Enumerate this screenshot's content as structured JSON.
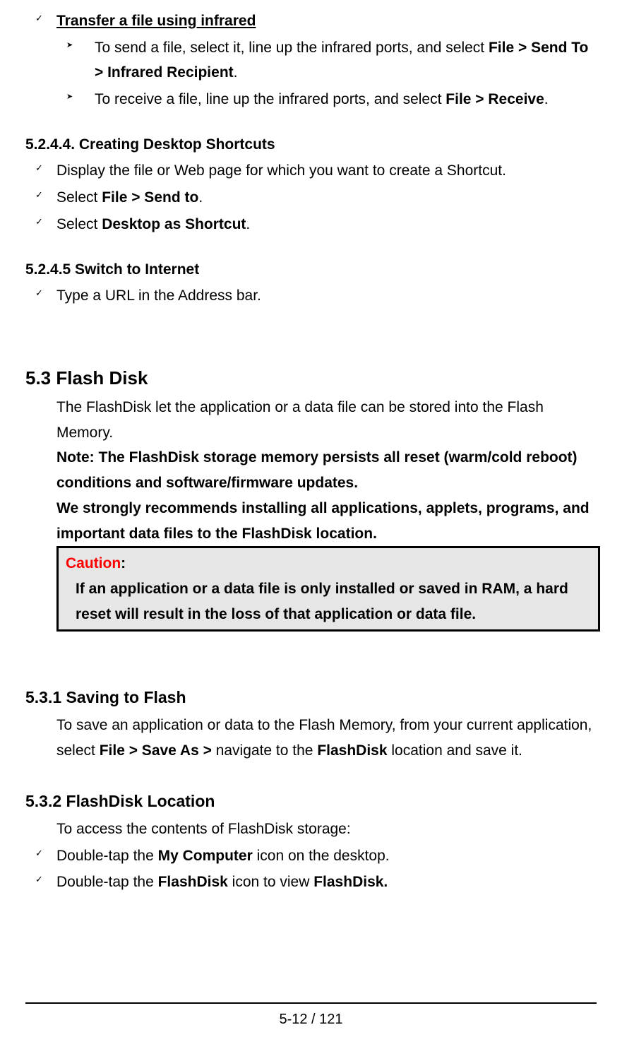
{
  "top": {
    "heading": "Transfer a file using infrared",
    "bullet1_pre": "To send a file, select it, line up the infrared ports, and select ",
    "bullet1_bold": "File > Send To > Infrared Recipient",
    "bullet1_post": ".",
    "bullet2_pre": "To receive a file, line up the infrared ports, and select ",
    "bullet2_bold": "File > Receive",
    "bullet2_post": "."
  },
  "s5244": {
    "heading": "5.2.4.4. Creating Desktop Shortcuts",
    "b1": "Display the file or Web page for which you want to create a Shortcut.",
    "b2_pre": "Select ",
    "b2_bold": "File > Send to",
    "b2_post": ".",
    "b3_pre": "Select ",
    "b3_bold": "Desktop as Shortcut",
    "b3_post": "."
  },
  "s5245": {
    "heading": "5.2.4.5 Switch to Internet",
    "b1": "Type a URL in the Address bar."
  },
  "s53": {
    "heading": "5.3 Flash Disk",
    "p1": "The FlashDisk let the application or a data file can be stored into the Flash Memory.",
    "note": "Note: The FlashDisk storage memory persists all reset (warm/cold reboot) conditions and software/firmware updates.",
    "recommend": "We strongly recommends installing all applications, applets, programs, and important data files to the FlashDisk location.",
    "caution_label": "Caution",
    "caution_colon": ":",
    "caution_body": "If an application or a data file is only installed or saved in RAM, a hard reset will result in the loss of that application or data file."
  },
  "s531": {
    "heading": "5.3.1 Saving to Flash",
    "p_pre1": "To save an application or data to the Flash Memory, from your current application, select ",
    "p_bold1": "File > Save As >",
    "p_mid": " navigate to the ",
    "p_bold2": "FlashDisk",
    "p_post": " location and save it."
  },
  "s532": {
    "heading": "5.3.2 FlashDisk Location",
    "p1": "To access the contents of FlashDisk storage:",
    "b1_pre": "Double-tap the ",
    "b1_bold": "My Computer",
    "b1_post": " icon on the desktop.",
    "b2_pre": "Double-tap the ",
    "b2_bold1": "FlashDisk",
    "b2_mid": " icon to view ",
    "b2_bold2": "FlashDisk."
  },
  "footer": {
    "page": "5-12 / 121"
  }
}
